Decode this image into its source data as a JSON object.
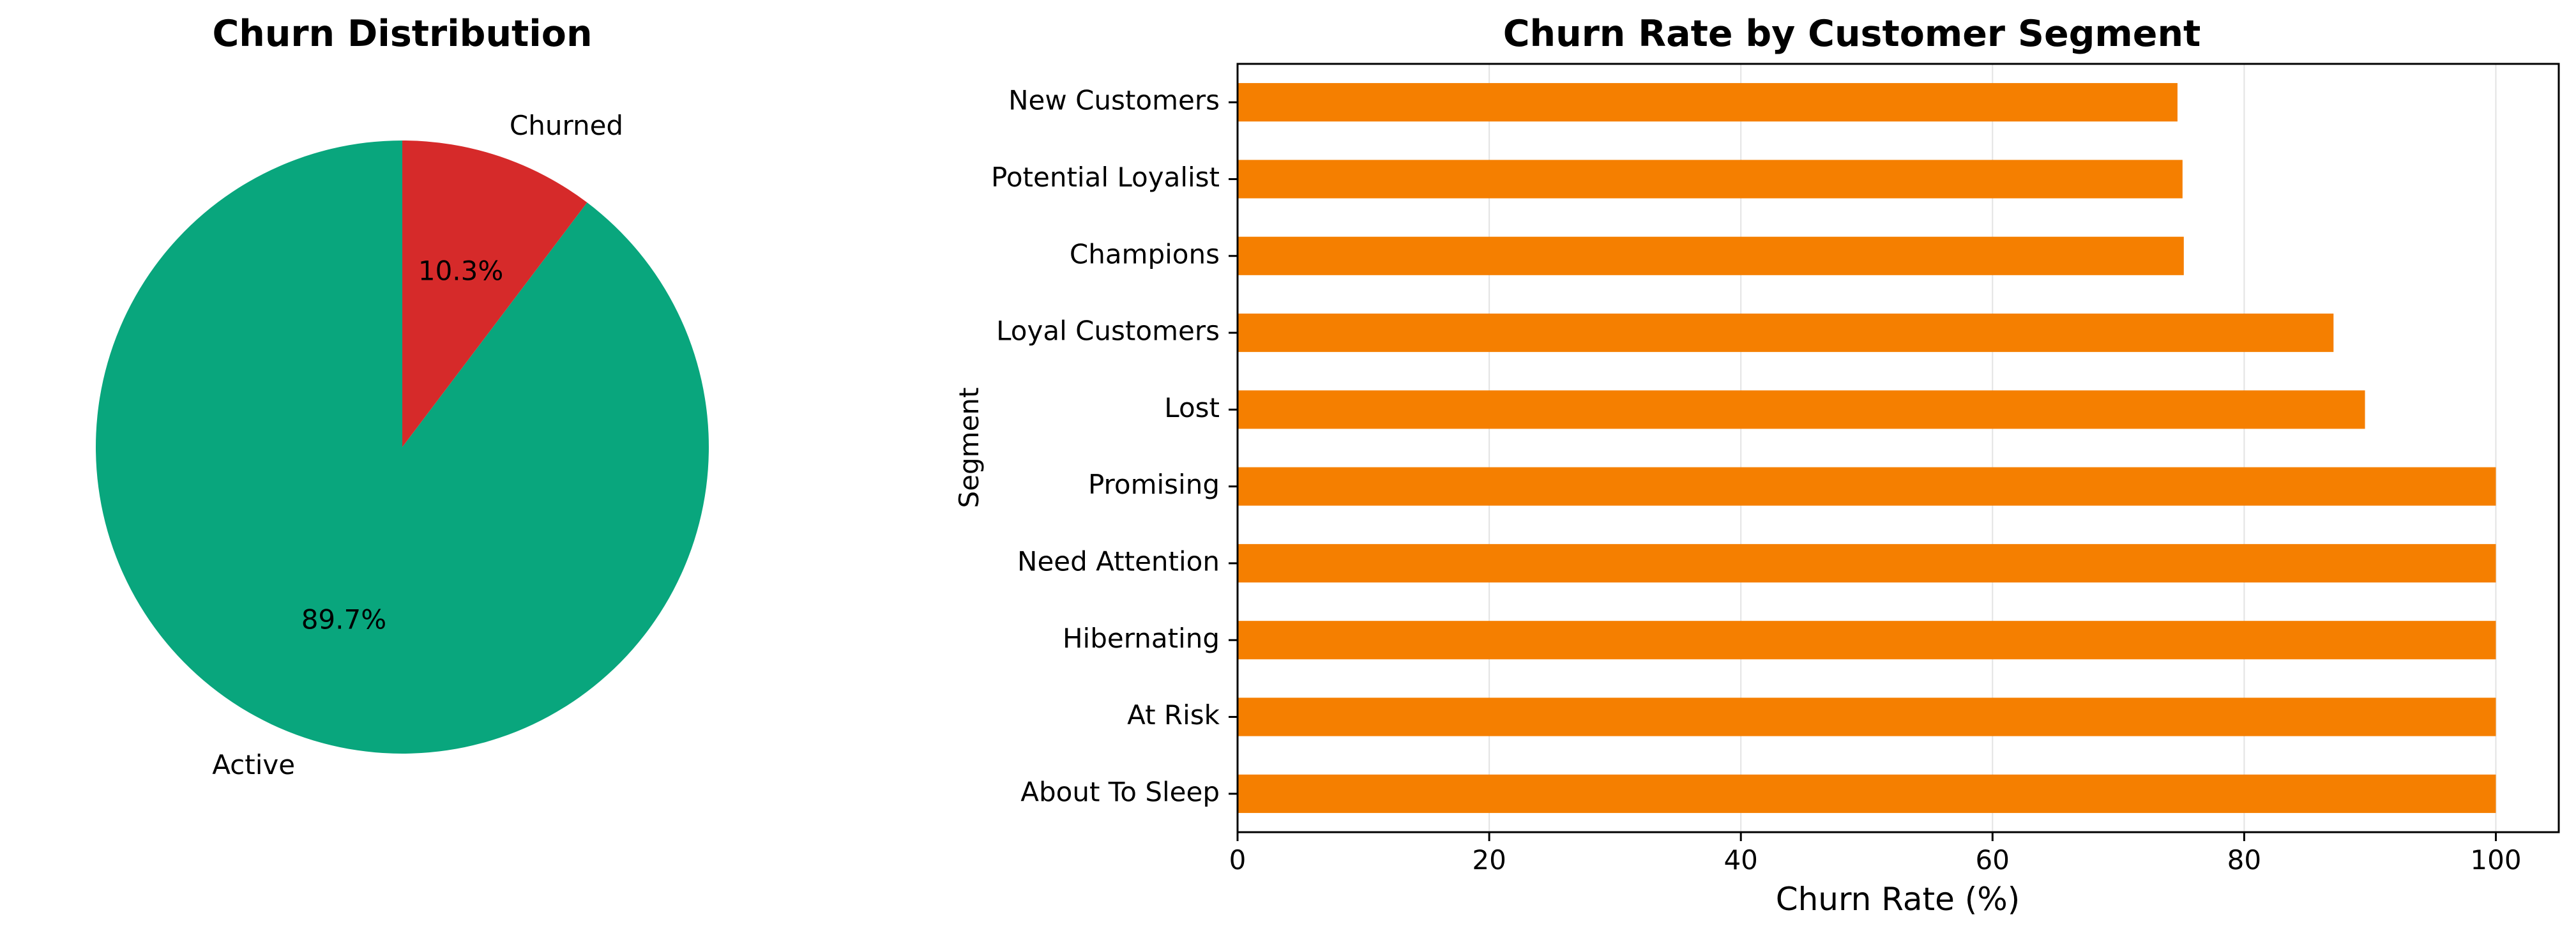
{
  "chart_data": [
    {
      "type": "pie",
      "title": "Churn Distribution",
      "slices": [
        {
          "label": "Active",
          "value": 89.7,
          "pct_label": "89.7%",
          "color": "#09a67d"
        },
        {
          "label": "Churned",
          "value": 10.3,
          "pct_label": "10.3%",
          "color": "#d62a2a"
        }
      ],
      "start_angle_deg": 90,
      "direction": "counterclockwise",
      "legend": "none"
    },
    {
      "type": "bar",
      "orientation": "horizontal",
      "title": "Churn Rate by Customer Segment",
      "xlabel": "Churn Rate (%)",
      "ylabel": "Segment",
      "xlim": [
        0,
        105
      ],
      "xticks": [
        0,
        20,
        40,
        60,
        80,
        100
      ],
      "grid": "x-axis vertical lines",
      "legend": "none",
      "color": "#f57f00",
      "categories": [
        "New Customers",
        "Potential Loyalist",
        "Champions",
        "Loyal Customers",
        "Lost",
        "Promising",
        "Need Attention",
        "Hibernating",
        "At Risk",
        "About To Sleep"
      ],
      "values": [
        74.7,
        75.1,
        75.2,
        87.1,
        89.6,
        100,
        100,
        100,
        100,
        100
      ]
    }
  ]
}
